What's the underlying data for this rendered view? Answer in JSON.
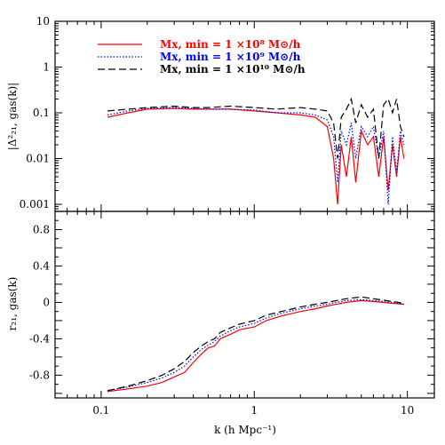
{
  "chart_data": [
    {
      "type": "line",
      "panel": "top",
      "ylabel": "|Δ²₂₁, gas(k)|",
      "xscale": "log",
      "yscale": "log",
      "xlim": [
        0.05,
        15
      ],
      "ylim": [
        0.0007,
        10
      ],
      "yticks": [
        0.001,
        0.01,
        0.1,
        1,
        10
      ],
      "ytick_labels": [
        "0.001",
        "0.01",
        "0.1",
        "1",
        "10"
      ],
      "legend": "top-left",
      "series": [
        {
          "name": "Mx, min = 1 ×10⁸ M⊙/h",
          "color": "#ff0000",
          "dash": "solid",
          "x": [
            0.11,
            0.15,
            0.2,
            0.3,
            0.4,
            0.5,
            0.7,
            1.0,
            1.4,
            2.0,
            2.5,
            3.0,
            3.3,
            3.5,
            3.7,
            4.0,
            4.3,
            4.6,
            5.0,
            5.5,
            6.0,
            6.5,
            7.0,
            7.5,
            8.0,
            8.5,
            9.0,
            9.5
          ],
          "values": [
            0.08,
            0.1,
            0.12,
            0.125,
            0.12,
            0.12,
            0.12,
            0.11,
            0.1,
            0.09,
            0.08,
            0.05,
            0.01,
            0.001,
            0.02,
            0.004,
            0.03,
            0.003,
            0.04,
            0.02,
            0.03,
            0.004,
            0.03,
            0.002,
            0.02,
            0.004,
            0.03,
            0.01
          ]
        },
        {
          "name": "Mx, min = 1 ×10⁹ M⊙/h",
          "color": "#0000ff",
          "dash": "dotted",
          "x": [
            0.11,
            0.15,
            0.2,
            0.3,
            0.4,
            0.5,
            0.7,
            1.0,
            1.4,
            2.0,
            2.5,
            3.0,
            3.3,
            3.5,
            3.7,
            4.0,
            4.3,
            4.6,
            5.0,
            5.5,
            6.0,
            6.5,
            7.0,
            7.5,
            8.0,
            8.5,
            9.0,
            9.5
          ],
          "values": [
            0.09,
            0.11,
            0.125,
            0.13,
            0.125,
            0.12,
            0.12,
            0.115,
            0.1,
            0.1,
            0.09,
            0.07,
            0.03,
            0.003,
            0.04,
            0.02,
            0.06,
            0.01,
            0.05,
            0.03,
            0.05,
            0.01,
            0.04,
            0.001,
            0.03,
            0.005,
            0.04,
            0.02
          ]
        },
        {
          "name": "Mx, min = 1 ×10¹⁰ M⊙/h",
          "color": "#000000",
          "dash": "dashed",
          "x": [
            0.11,
            0.15,
            0.2,
            0.3,
            0.4,
            0.5,
            0.7,
            1.0,
            1.4,
            2.0,
            2.5,
            3.0,
            3.3,
            3.5,
            3.7,
            4.0,
            4.3,
            4.6,
            5.0,
            5.5,
            6.0,
            6.5,
            7.0,
            7.5,
            8.0,
            8.5,
            9.0,
            9.5
          ],
          "values": [
            0.11,
            0.12,
            0.13,
            0.14,
            0.13,
            0.13,
            0.14,
            0.13,
            0.12,
            0.13,
            0.12,
            0.11,
            0.06,
            0.01,
            0.08,
            0.12,
            0.2,
            0.06,
            0.15,
            0.08,
            0.12,
            0.01,
            0.15,
            0.2,
            0.1,
            0.2,
            0.05,
            0.03
          ]
        }
      ]
    },
    {
      "type": "line",
      "panel": "bottom",
      "xlabel": "k (h Mpc⁻¹)",
      "ylabel": "r₂₁, gas(k)",
      "xscale": "log",
      "xlim": [
        0.05,
        15
      ],
      "ylim": [
        -1.05,
        1.0
      ],
      "xticks": [
        0.1,
        1,
        10
      ],
      "xtick_labels": [
        "0.1",
        "1",
        "10"
      ],
      "yticks": [
        -0.8,
        -0.4,
        0,
        0.4,
        0.8
      ],
      "ytick_labels": [
        "-0.8",
        "-0.4",
        "0",
        "0.4",
        "0.8"
      ],
      "series": [
        {
          "name": "Mx, min = 1 ×10⁸ M⊙/h",
          "color": "#ff0000",
          "dash": "solid",
          "x": [
            0.11,
            0.15,
            0.2,
            0.25,
            0.3,
            0.35,
            0.4,
            0.45,
            0.5,
            0.55,
            0.6,
            0.7,
            0.8,
            1.0,
            1.2,
            1.5,
            2.0,
            2.5,
            3.0,
            4.0,
            5.0,
            6.0,
            8.0,
            9.5
          ],
          "values": [
            -0.98,
            -0.95,
            -0.92,
            -0.88,
            -0.82,
            -0.77,
            -0.66,
            -0.57,
            -0.5,
            -0.48,
            -0.4,
            -0.35,
            -0.3,
            -0.27,
            -0.2,
            -0.15,
            -0.1,
            -0.07,
            -0.04,
            0.0,
            0.02,
            0.01,
            -0.01,
            -0.02
          ]
        },
        {
          "name": "Mx, min = 1 ×10⁹ M⊙/h",
          "color": "#0000ff",
          "dash": "dotted",
          "x": [
            0.11,
            0.15,
            0.2,
            0.25,
            0.3,
            0.35,
            0.4,
            0.45,
            0.5,
            0.55,
            0.6,
            0.7,
            0.8,
            1.0,
            1.2,
            1.5,
            2.0,
            2.5,
            3.0,
            4.0,
            5.0,
            6.0,
            8.0,
            9.5
          ],
          "values": [
            -0.97,
            -0.93,
            -0.88,
            -0.83,
            -0.77,
            -0.7,
            -0.6,
            -0.52,
            -0.47,
            -0.43,
            -0.37,
            -0.31,
            -0.27,
            -0.23,
            -0.17,
            -0.12,
            -0.07,
            -0.04,
            -0.02,
            0.02,
            0.03,
            0.02,
            0.0,
            -0.02
          ]
        },
        {
          "name": "Mx, min = 1 ×10¹⁰ M⊙/h",
          "color": "#000000",
          "dash": "dashed",
          "x": [
            0.11,
            0.15,
            0.2,
            0.25,
            0.3,
            0.35,
            0.4,
            0.45,
            0.5,
            0.55,
            0.6,
            0.7,
            0.8,
            1.0,
            1.2,
            1.5,
            2.0,
            2.5,
            3.0,
            4.0,
            5.0,
            6.0,
            8.0,
            9.5
          ],
          "values": [
            -0.97,
            -0.92,
            -0.86,
            -0.8,
            -0.73,
            -0.65,
            -0.55,
            -0.48,
            -0.43,
            -0.4,
            -0.33,
            -0.28,
            -0.24,
            -0.2,
            -0.14,
            -0.1,
            -0.05,
            -0.02,
            0.0,
            0.04,
            0.06,
            0.04,
            0.01,
            -0.01
          ]
        }
      ]
    }
  ]
}
